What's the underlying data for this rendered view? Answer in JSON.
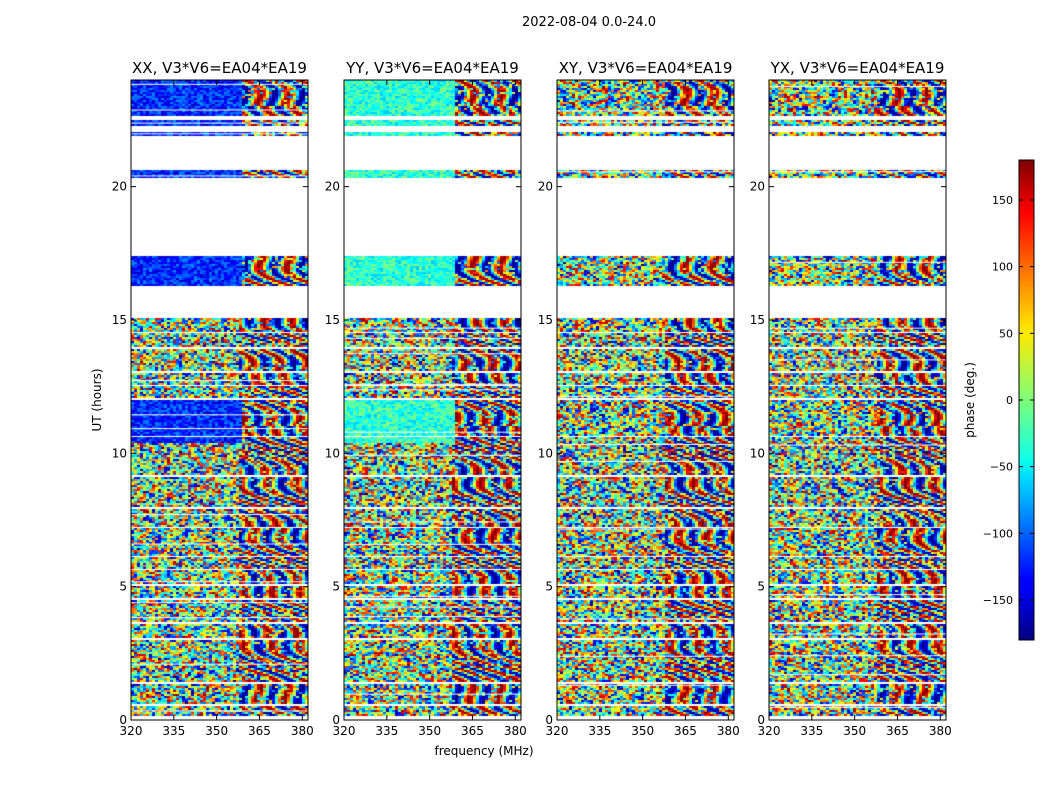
{
  "figure": {
    "suptitle": "2022-08-04 0.0-24.0"
  },
  "chart_data": {
    "type": "heatmap",
    "xlabel": "frequency (MHz)",
    "ylabel": "UT (hours)",
    "xlim": [
      320,
      382
    ],
    "ylim": [
      0,
      24
    ],
    "x_ticks": [
      320,
      335,
      350,
      365,
      380
    ],
    "x_tick_labels": [
      "320",
      "335",
      "350",
      "365",
      "380"
    ],
    "y_ticks": [
      0,
      5,
      10,
      15,
      20
    ],
    "y_tick_labels": [
      "0",
      "5",
      "10",
      "15",
      "20"
    ],
    "panels": [
      {
        "title": "XX, V3*V6=EA04*EA19",
        "polarization": "XX",
        "low_freq_phase": -120
      },
      {
        "title": "YY, V3*V6=EA04*EA19",
        "polarization": "YY",
        "low_freq_phase": -30
      },
      {
        "title": "XY, V3*V6=EA04*EA19",
        "polarization": "XY",
        "low_freq_phase": null
      },
      {
        "title": "YX, V3*V6=EA04*EA19",
        "polarization": "YX",
        "low_freq_phase": null
      }
    ],
    "data_segments_ut": [
      [
        0.15,
        0.5
      ],
      [
        0.6,
        1.35
      ],
      [
        1.45,
        2.0
      ],
      [
        2.05,
        3.0
      ],
      [
        3.1,
        3.6
      ],
      [
        3.7,
        3.95
      ],
      [
        4.0,
        4.5
      ],
      [
        4.6,
        5.0
      ],
      [
        5.1,
        5.6
      ],
      [
        5.7,
        6.1
      ],
      [
        6.2,
        7.2
      ],
      [
        7.3,
        7.9
      ],
      [
        8.0,
        9.1
      ],
      [
        9.2,
        10.0
      ],
      [
        10.05,
        10.6
      ],
      [
        10.7,
        11.0
      ],
      [
        11.05,
        12.0
      ],
      [
        12.1,
        12.5
      ],
      [
        12.6,
        13.0
      ],
      [
        13.1,
        13.9
      ],
      [
        14.0,
        14.5
      ],
      [
        14.6,
        15.05
      ],
      [
        16.3,
        17.4
      ],
      [
        20.35,
        20.6
      ],
      [
        21.9,
        22.05
      ],
      [
        22.3,
        22.5
      ],
      [
        22.65,
        23.0
      ],
      [
        23.05,
        24.0
      ]
    ],
    "colorbar": {
      "label": "phase (deg.)",
      "range": [
        -180,
        180
      ],
      "ticks": [
        -150,
        -100,
        -50,
        0,
        50,
        100,
        150
      ],
      "tick_labels": [
        "−150",
        "−100",
        "−50",
        "0",
        "50",
        "100",
        "150"
      ],
      "colormap": "jet"
    }
  }
}
